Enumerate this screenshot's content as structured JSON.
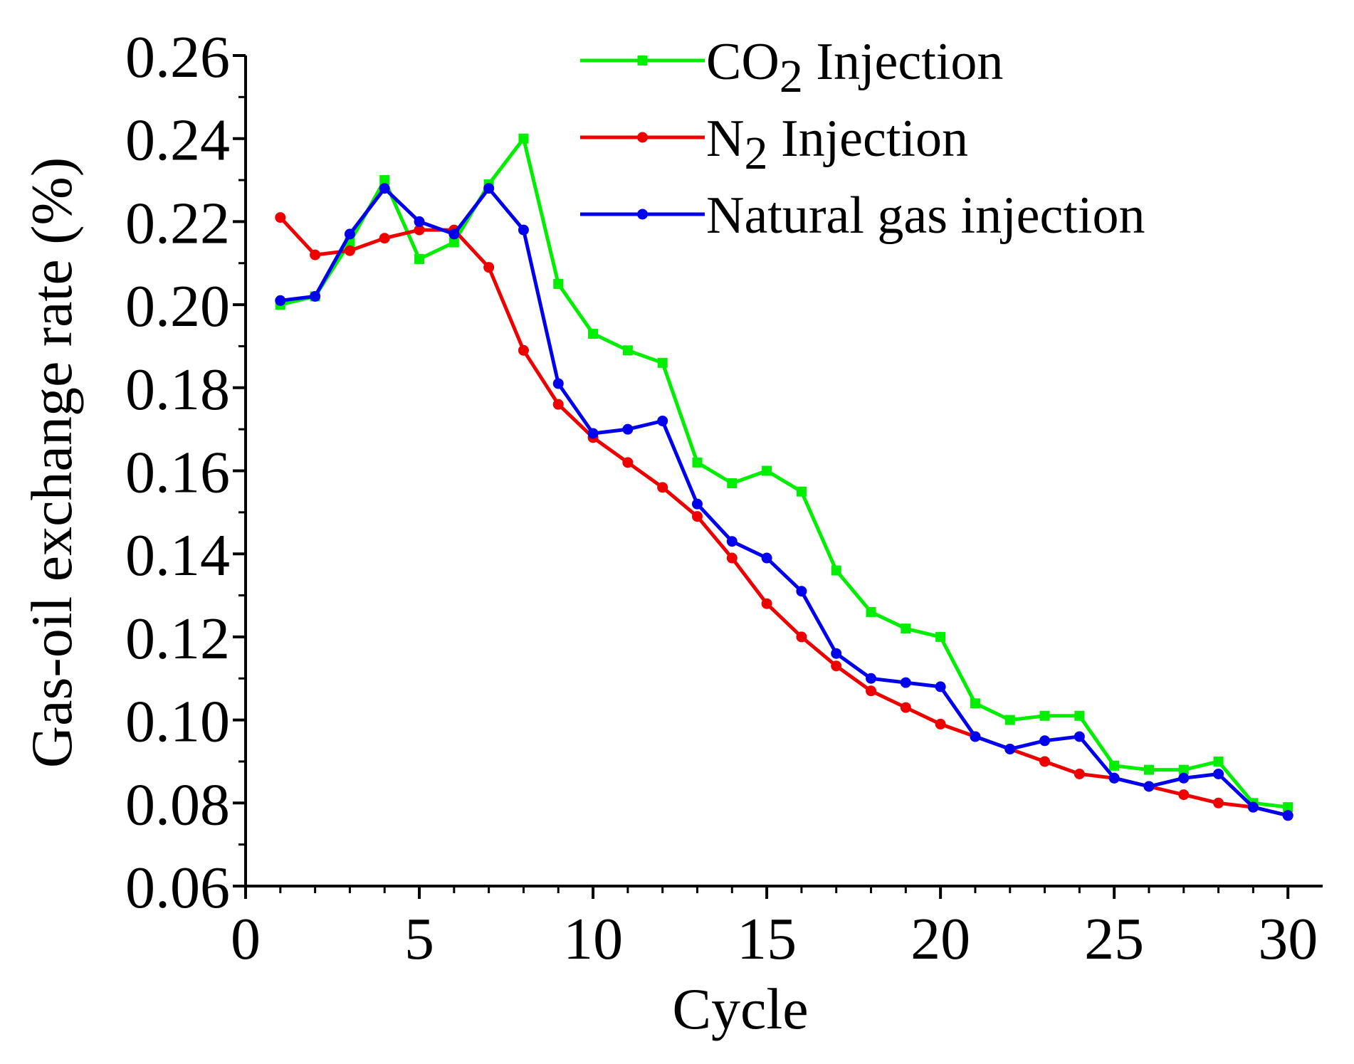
{
  "chart_data": {
    "type": "line",
    "title": "",
    "xlabel": "Cycle",
    "ylabel": "Gas-oil exchange rate (%)",
    "xlim": [
      0,
      31
    ],
    "ylim": [
      0.06,
      0.26
    ],
    "x_ticks": [
      0,
      5,
      10,
      15,
      20,
      25,
      30
    ],
    "x_tick_labels": [
      "0",
      "5",
      "10",
      "15",
      "20",
      "25",
      "30"
    ],
    "y_ticks": [
      0.06,
      0.08,
      0.1,
      0.12,
      0.14,
      0.16,
      0.18,
      0.2,
      0.22,
      0.24,
      0.26
    ],
    "y_tick_labels": [
      "0.06",
      "0.08",
      "0.10",
      "0.12",
      "0.14",
      "0.16",
      "0.18",
      "0.20",
      "0.22",
      "0.24",
      "0.26"
    ],
    "grid": false,
    "legend_position": "top-right",
    "x": [
      1,
      2,
      3,
      4,
      5,
      6,
      7,
      8,
      9,
      10,
      11,
      12,
      13,
      14,
      15,
      16,
      17,
      18,
      19,
      20,
      21,
      22,
      23,
      24,
      25,
      26,
      27,
      28,
      29,
      30
    ],
    "series": [
      {
        "name": "CO2 Injection",
        "legend_main": "CO",
        "legend_sub": "2",
        "legend_suffix": " Injection",
        "color": "#00ee00",
        "marker": "square",
        "values": [
          0.2,
          0.202,
          0.215,
          0.23,
          0.211,
          0.215,
          0.229,
          0.24,
          0.205,
          0.193,
          0.189,
          0.186,
          0.162,
          0.157,
          0.16,
          0.155,
          0.136,
          0.126,
          0.122,
          0.12,
          0.104,
          0.1,
          0.101,
          0.101,
          0.089,
          0.088,
          0.088,
          0.09,
          0.08,
          0.079
        ]
      },
      {
        "name": "N2 Injection",
        "legend_main": "N",
        "legend_sub": "2",
        "legend_suffix": " Injection",
        "color": "#ee0000",
        "marker": "circle",
        "values": [
          0.221,
          0.212,
          0.213,
          0.216,
          0.218,
          0.218,
          0.209,
          0.189,
          0.176,
          0.168,
          0.162,
          0.156,
          0.149,
          0.139,
          0.128,
          0.12,
          0.113,
          0.107,
          0.103,
          0.099,
          0.096,
          0.093,
          0.09,
          0.087,
          0.086,
          0.084,
          0.082,
          0.08,
          0.079,
          0.077
        ]
      },
      {
        "name": "Natural gas injection",
        "legend_main": "Natural gas injection",
        "legend_sub": "",
        "legend_suffix": "",
        "color": "#0000ee",
        "marker": "circle",
        "values": [
          0.201,
          0.202,
          0.217,
          0.228,
          0.22,
          0.217,
          0.228,
          0.218,
          0.181,
          0.169,
          0.17,
          0.172,
          0.152,
          0.143,
          0.139,
          0.131,
          0.116,
          0.11,
          0.109,
          0.108,
          0.096,
          0.093,
          0.095,
          0.096,
          0.086,
          0.084,
          0.086,
          0.087,
          0.079,
          0.077
        ]
      }
    ]
  }
}
